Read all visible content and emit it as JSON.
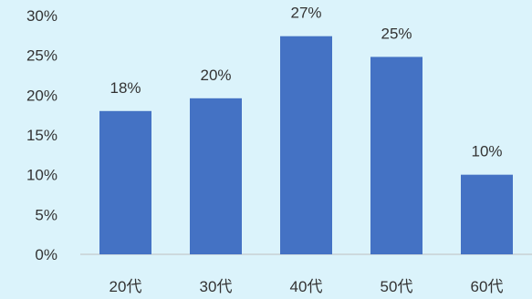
{
  "chart_data": {
    "type": "bar",
    "categories": [
      "20代",
      "30代",
      "40代",
      "50代",
      "60代"
    ],
    "values": [
      18,
      19.6,
      27.4,
      24.8,
      10
    ],
    "data_labels": [
      "18%",
      "20%",
      "27%",
      "25%",
      "10%"
    ],
    "yticks": [
      "0%",
      "5%",
      "10%",
      "15%",
      "20%",
      "25%",
      "30%"
    ],
    "ylim": [
      0,
      30
    ],
    "grid": false,
    "bar_color": "#4472c4",
    "background": "#dbf3fb"
  }
}
